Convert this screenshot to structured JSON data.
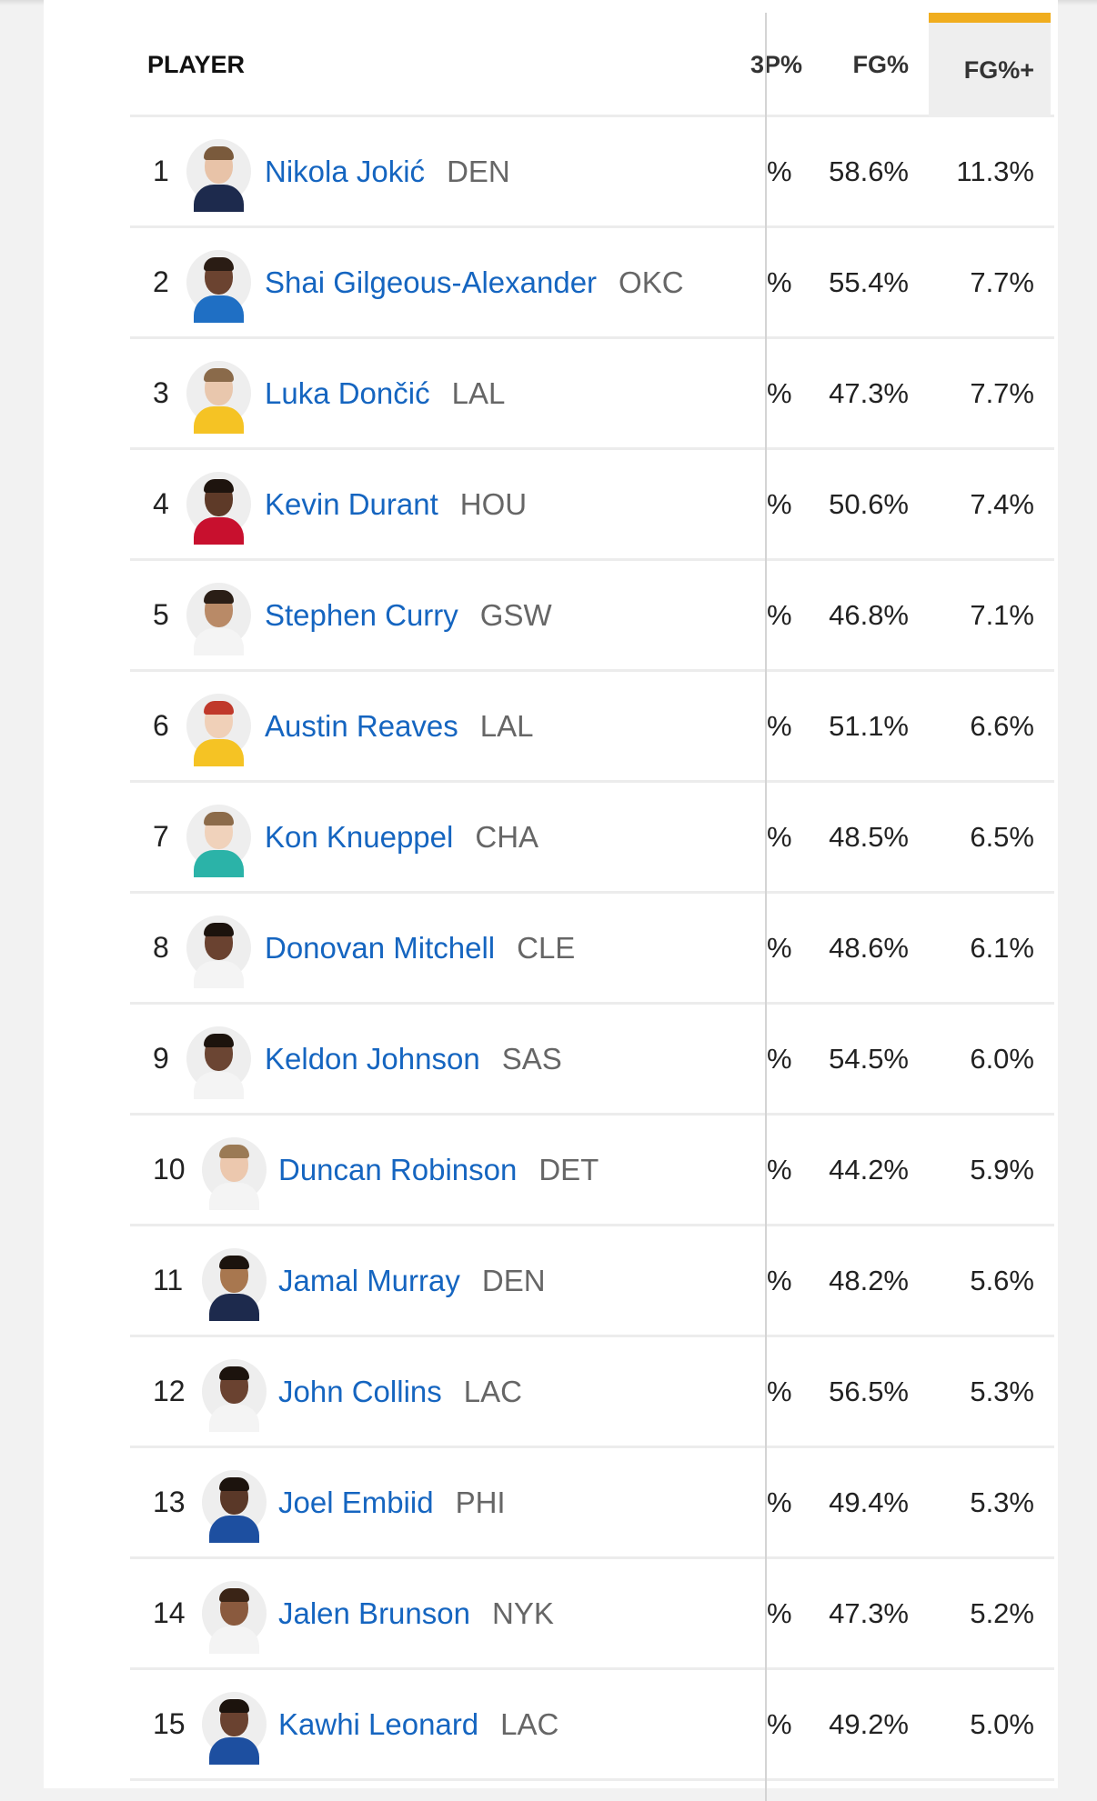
{
  "header": {
    "player": "PLAYER",
    "cut_col": "3P%",
    "fg": "FG%",
    "fg_plus": "FG%+"
  },
  "colors": {
    "link": "#1565c0",
    "accent_sort": "#f0ad1e"
  },
  "rows": [
    {
      "rank": "1",
      "name": "Nikola Jokić",
      "team": "DEN",
      "cut": "%",
      "fg": "58.6%",
      "fg_plus": "11.3%",
      "jersey": "#1d2a4d",
      "skin": "#e8c3a8",
      "hair": "#7a5a3c"
    },
    {
      "rank": "2",
      "name": "Shai Gilgeous-Alexander",
      "team": "OKC",
      "cut": "%",
      "fg": "55.4%",
      "fg_plus": "7.7%",
      "jersey": "#1f6fc4",
      "skin": "#6b4330",
      "hair": "#2a1c14"
    },
    {
      "rank": "3",
      "name": "Luka Dončić",
      "team": "LAL",
      "cut": "%",
      "fg": "47.3%",
      "fg_plus": "7.7%",
      "jersey": "#f5c324",
      "skin": "#e9c7ad",
      "hair": "#8a6a4a"
    },
    {
      "rank": "4",
      "name": "Kevin Durant",
      "team": "HOU",
      "cut": "%",
      "fg": "50.6%",
      "fg_plus": "7.4%",
      "jersey": "#c8102e",
      "skin": "#5e3a28",
      "hair": "#1e140e"
    },
    {
      "rank": "5",
      "name": "Stephen Curry",
      "team": "GSW",
      "cut": "%",
      "fg": "46.8%",
      "fg_plus": "7.1%",
      "jersey": "#f4f4f4",
      "skin": "#b98a67",
      "hair": "#2a1e16"
    },
    {
      "rank": "6",
      "name": "Austin Reaves",
      "team": "LAL",
      "cut": "%",
      "fg": "51.1%",
      "fg_plus": "6.6%",
      "jersey": "#f5c324",
      "skin": "#f0d0b8",
      "hair": "#c0392b"
    },
    {
      "rank": "7",
      "name": "Kon Knueppel",
      "team": "CHA",
      "cut": "%",
      "fg": "48.5%",
      "fg_plus": "6.5%",
      "jersey": "#2bb3a8",
      "skin": "#f0d2bb",
      "hair": "#8c6b4a"
    },
    {
      "rank": "8",
      "name": "Donovan Mitchell",
      "team": "CLE",
      "cut": "%",
      "fg": "48.6%",
      "fg_plus": "6.1%",
      "jersey": "#f4f4f4",
      "skin": "#6a4230",
      "hair": "#1c130d"
    },
    {
      "rank": "9",
      "name": "Keldon Johnson",
      "team": "SAS",
      "cut": "%",
      "fg": "54.5%",
      "fg_plus": "6.0%",
      "jersey": "#f4f4f4",
      "skin": "#6b4533",
      "hair": "#1c130d"
    },
    {
      "rank": "10",
      "name": "Duncan Robinson",
      "team": "DET",
      "cut": "%",
      "fg": "44.2%",
      "fg_plus": "5.9%",
      "jersey": "#f4f4f4",
      "skin": "#ecc8ae",
      "hair": "#9b7a55"
    },
    {
      "rank": "11",
      "name": "Jamal Murray",
      "team": "DEN",
      "cut": "%",
      "fg": "48.2%",
      "fg_plus": "5.6%",
      "jersey": "#1d2a4d",
      "skin": "#a8774f",
      "hair": "#1c130d"
    },
    {
      "rank": "12",
      "name": "John Collins",
      "team": "LAC",
      "cut": "%",
      "fg": "56.5%",
      "fg_plus": "5.3%",
      "jersey": "#f4f4f4",
      "skin": "#6a4230",
      "hair": "#1c130d"
    },
    {
      "rank": "13",
      "name": "Joel Embiid",
      "team": "PHI",
      "cut": "%",
      "fg": "49.4%",
      "fg_plus": "5.3%",
      "jersey": "#1d4fa0",
      "skin": "#5a3828",
      "hair": "#1c130d"
    },
    {
      "rank": "14",
      "name": "Jalen Brunson",
      "team": "NYK",
      "cut": "%",
      "fg": "47.3%",
      "fg_plus": "5.2%",
      "jersey": "#f4f4f4",
      "skin": "#8a5a3e",
      "hair": "#3a2416"
    },
    {
      "rank": "15",
      "name": "Kawhi Leonard",
      "team": "LAC",
      "cut": "%",
      "fg": "49.2%",
      "fg_plus": "5.0%",
      "jersey": "#1d4fa0",
      "skin": "#6a4230",
      "hair": "#1c130d"
    }
  ]
}
